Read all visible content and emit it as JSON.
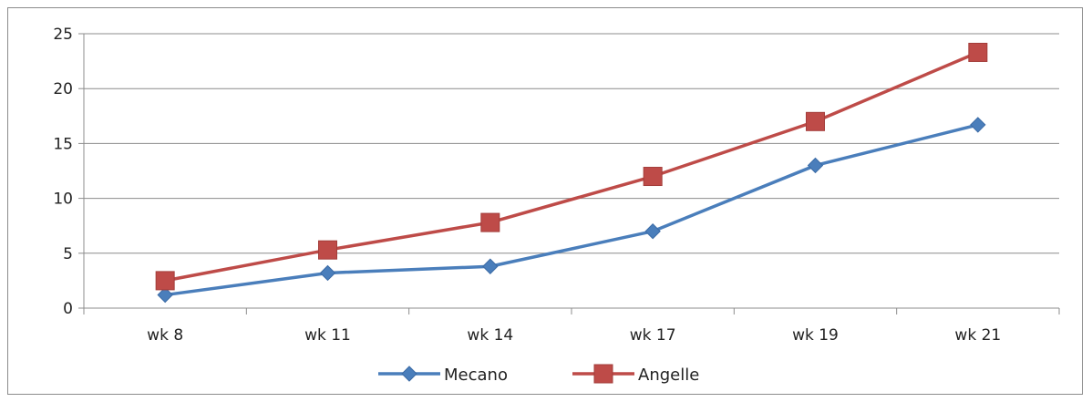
{
  "chart_data": {
    "type": "line",
    "categories": [
      "wk 8",
      "wk 11",
      "wk 14",
      "wk 17",
      "wk 19",
      "wk 21"
    ],
    "series": [
      {
        "name": "Mecano",
        "values": [
          1.2,
          3.2,
          3.8,
          7.0,
          13.0,
          16.7
        ],
        "color": "#4a7ebb",
        "marker": "diamond"
      },
      {
        "name": "Angelle",
        "values": [
          2.5,
          5.3,
          7.8,
          12.0,
          17.0,
          23.3
        ],
        "color": "#be4b48",
        "marker": "square"
      }
    ],
    "ylim": [
      0,
      25
    ],
    "yticks": [
      0,
      5,
      10,
      15,
      20,
      25
    ],
    "grid": true,
    "legend_position": "bottom",
    "gridline_color": "#8c8c8c",
    "axis_color": "#8c8c8c"
  }
}
